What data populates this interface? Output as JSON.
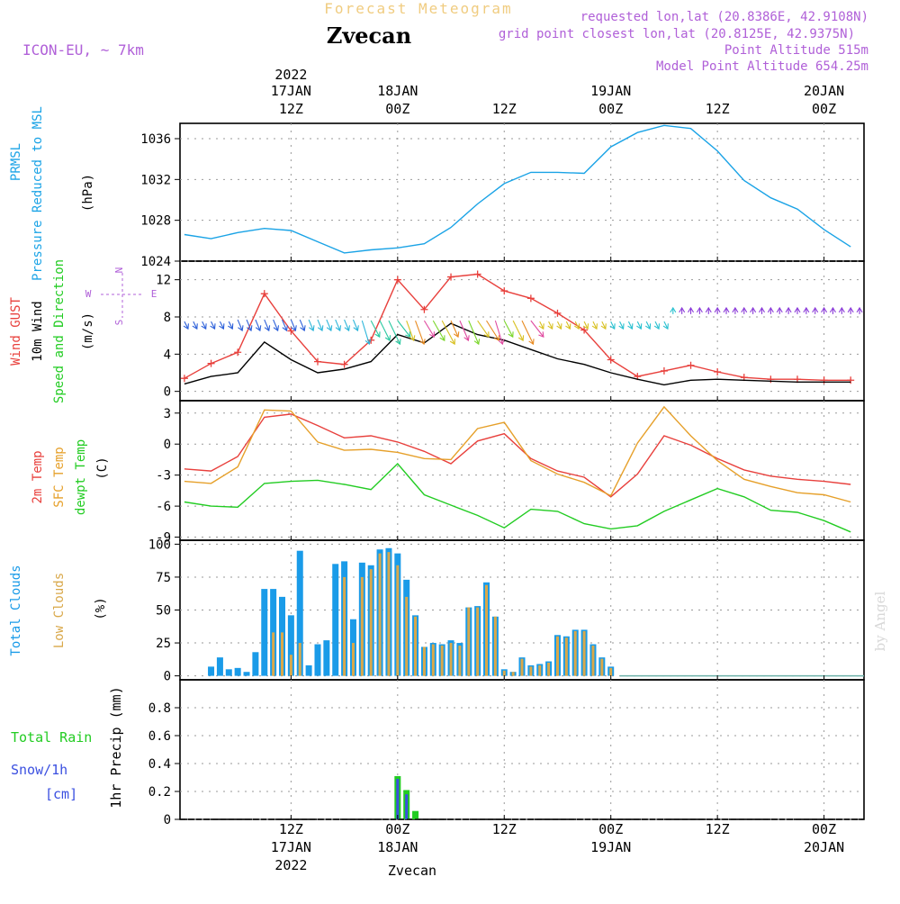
{
  "header": {
    "title_top": "Forecast Meteogram",
    "location": "Zvecan",
    "model": "ICON-EU, ~ 7km",
    "requested": "requested lon,lat (20.8386E, 42.9108N)",
    "grid_point": "grid point closest lon,lat (20.8125E, 42.9375N)",
    "point_alt": "Point Altitude 515m",
    "model_alt": "Model Point Altitude 654.25m",
    "footer_location": "Zvecan",
    "watermark": "by Angel"
  },
  "colors": {
    "prmsl": "#1aa3e6",
    "gust": "#e8403c",
    "wind": "#000000",
    "temp2m": "#e8403c",
    "sfc": "#e6a02a",
    "dew": "#22cc22",
    "total_clouds": "#1a9be8",
    "low_clouds": "#d9a84a",
    "rain": "#22cc22",
    "snow": "#3a4fe0",
    "purple": "#b060d8"
  },
  "chart_data": [
    {
      "id": "pressure",
      "type": "line",
      "title": "PRMSL Pressure Reduced to MSL",
      "label_lines": [
        "PRMSL",
        "Pressure Reduced to MSL"
      ],
      "unit": "(hPa)",
      "ylim": [
        1024,
        1037.5
      ],
      "yticks": [
        1024,
        1028,
        1032,
        1036
      ],
      "x": [
        0,
        3,
        6,
        9,
        12,
        15,
        18,
        21,
        24,
        27,
        30,
        33,
        36,
        39,
        42,
        45,
        48,
        51,
        54,
        57,
        60,
        63,
        66,
        69,
        72,
        75
      ],
      "series": [
        {
          "name": "PRMSL",
          "values": [
            1026.6,
            1026.2,
            1026.8,
            1027.2,
            1027.0,
            1025.9,
            1024.8,
            1025.1,
            1025.3,
            1025.7,
            1027.3,
            1029.6,
            1031.6,
            1032.7,
            1032.7,
            1032.6,
            1035.2,
            1036.6,
            1037.3,
            1037.0,
            1034.8,
            1031.9,
            1030.2,
            1029.1,
            1027.1,
            1025.4
          ]
        }
      ]
    },
    {
      "id": "wind",
      "type": "line",
      "title": "Wind GUST / 10m Wind Speed and Direction",
      "label_lines": [
        "Wind GUST",
        "10m Wind",
        "Speed and Direction"
      ],
      "unit": "(m/s)",
      "ylim": [
        -1,
        14
      ],
      "yticks": [
        0,
        4,
        8,
        12
      ],
      "compass": [
        "N",
        "W",
        "E",
        "S"
      ],
      "x": [
        0,
        3,
        6,
        9,
        12,
        15,
        18,
        21,
        24,
        27,
        30,
        33,
        36,
        39,
        42,
        45,
        48,
        51,
        54,
        57,
        60,
        63,
        66,
        69,
        72,
        75
      ],
      "series": [
        {
          "name": "Wind GUST",
          "values": [
            1.4,
            3.0,
            4.2,
            10.5,
            6.5,
            3.2,
            2.9,
            5.5,
            12.0,
            8.8,
            12.3,
            12.6,
            10.8,
            10.0,
            8.4,
            6.6,
            3.4,
            1.6,
            2.2,
            2.8,
            2.1,
            1.5,
            1.3,
            1.3,
            1.2,
            1.2
          ]
        },
        {
          "name": "10m Wind",
          "values": [
            0.8,
            1.6,
            2.0,
            5.3,
            3.4,
            2.0,
            2.4,
            3.2,
            6.1,
            5.2,
            7.3,
            6.1,
            5.5,
            4.5,
            3.5,
            2.9,
            2.0,
            1.3,
            0.7,
            1.2,
            1.3,
            1.2,
            1.1,
            1.0,
            1.0,
            1.0
          ]
        }
      ]
    },
    {
      "id": "temperature",
      "type": "line",
      "title": "2m Temp / SFC Temp / dewpt Temp",
      "label_lines": [
        "2m Temp",
        "SFC Temp",
        "dewpt Temp"
      ],
      "unit": "(C)",
      "ylim": [
        -9.3,
        4.2
      ],
      "yticks": [
        -9,
        -6,
        -3,
        0,
        3
      ],
      "x": [
        0,
        3,
        6,
        9,
        12,
        15,
        18,
        21,
        24,
        27,
        30,
        33,
        36,
        39,
        42,
        45,
        48,
        51,
        54,
        57,
        60,
        63,
        66,
        69,
        72,
        75
      ],
      "series": [
        {
          "name": "2m Temp",
          "values": [
            -2.4,
            -2.6,
            -1.2,
            2.6,
            2.9,
            1.8,
            0.6,
            0.8,
            0.2,
            -0.7,
            -1.9,
            0.3,
            1.0,
            -1.4,
            -2.6,
            -3.2,
            -5.1,
            -2.9,
            0.8,
            -0.1,
            -1.4,
            -2.5,
            -3.1,
            -3.4,
            -3.6,
            -3.9
          ]
        },
        {
          "name": "SFC Temp",
          "values": [
            -3.6,
            -3.8,
            -2.2,
            3.3,
            3.2,
            0.2,
            -0.6,
            -0.5,
            -0.8,
            -1.4,
            -1.5,
            1.5,
            2.1,
            -1.6,
            -2.9,
            -3.7,
            -5.0,
            0.1,
            3.6,
            0.8,
            -1.6,
            -3.4,
            -4.1,
            -4.7,
            -4.9,
            -5.6
          ]
        },
        {
          "name": "dewpt Temp",
          "values": [
            -5.6,
            -6.0,
            -6.1,
            -3.8,
            -3.6,
            -3.5,
            -3.9,
            -4.4,
            -1.9,
            -4.9,
            -5.9,
            -6.9,
            -8.1,
            -6.3,
            -6.5,
            -7.7,
            -8.2,
            -7.9,
            -6.5,
            -5.4,
            -4.3,
            -5.1,
            -6.4,
            -6.6,
            -7.4,
            -8.5
          ]
        }
      ]
    },
    {
      "id": "clouds",
      "type": "bar",
      "title": "Total Clouds / Low Clouds",
      "label_lines": [
        "Total Clouds",
        "Low Clouds"
      ],
      "unit": "(%)",
      "ylim": [
        -3,
        103
      ],
      "yticks": [
        0,
        25,
        50,
        75,
        100
      ],
      "x": [
        3,
        4,
        5,
        6,
        7,
        8,
        9,
        10,
        11,
        12,
        13,
        14,
        15,
        16,
        17,
        18,
        19,
        20,
        21,
        22,
        23,
        24,
        25,
        26,
        27,
        28,
        29,
        30,
        31,
        32,
        33,
        34,
        35,
        36,
        37,
        38,
        39,
        40,
        41,
        42,
        43,
        44,
        45,
        46,
        47,
        48
      ],
      "series": [
        {
          "name": "Total Clouds",
          "values": [
            7,
            14,
            5,
            6,
            3,
            18,
            66,
            66,
            60,
            46,
            95,
            8,
            24,
            27,
            85,
            87,
            43,
            86,
            84,
            96,
            97,
            93,
            73,
            46,
            22,
            25,
            24,
            27,
            25,
            52,
            53,
            71,
            45,
            5,
            3,
            14,
            8,
            9,
            11,
            31,
            30,
            35,
            35,
            24,
            14,
            7
          ]
        },
        {
          "name": "Low Clouds",
          "values": [
            0,
            0,
            0,
            0,
            0,
            0,
            0,
            33,
            33,
            16,
            25,
            0,
            0,
            0,
            0,
            75,
            25,
            75,
            81,
            93,
            94,
            84,
            60,
            45,
            22,
            24,
            23,
            25,
            23,
            52,
            52,
            69,
            45,
            4,
            3,
            13,
            7,
            8,
            10,
            30,
            29,
            34,
            34,
            23,
            13,
            6
          ]
        }
      ]
    },
    {
      "id": "precip",
      "type": "bar",
      "title": "1hr Precip (mm)",
      "label_lines": [
        "Total  Rain",
        "Snow/1h",
        "[cm]"
      ],
      "unit": "1hr Precip (mm)",
      "ylim": [
        0,
        1.0
      ],
      "yticks": [
        0,
        0.2,
        0.4,
        0.6,
        0.8
      ],
      "ytick_labels": [
        "0",
        "0.2",
        "0.4",
        "0.6",
        "0.8"
      ],
      "x": [
        24,
        25,
        26
      ],
      "series": [
        {
          "name": "Total Rain",
          "values": [
            0.31,
            0.21,
            0.06
          ]
        },
        {
          "name": "Snow/1h",
          "values": [
            0.29,
            0.18,
            0.0
          ]
        }
      ]
    }
  ],
  "time_axis": {
    "x_range": [
      -0.5,
      76.5
    ],
    "grid_x": [
      12,
      24,
      36,
      48,
      60,
      72
    ],
    "top_labels": [
      {
        "x": 12,
        "lines": [
          "2022",
          "17JAN",
          "12Z"
        ]
      },
      {
        "x": 24,
        "lines": [
          "18JAN",
          "00Z"
        ]
      },
      {
        "x": 36,
        "lines": [
          "12Z"
        ]
      },
      {
        "x": 48,
        "lines": [
          "19JAN",
          "00Z"
        ]
      },
      {
        "x": 60,
        "lines": [
          "12Z"
        ]
      },
      {
        "x": 72,
        "lines": [
          "20JAN",
          "00Z"
        ]
      }
    ],
    "bottom_labels": [
      {
        "x": 12,
        "lines": [
          "12Z",
          "17JAN",
          "2022"
        ]
      },
      {
        "x": 24,
        "lines": [
          "00Z",
          "18JAN"
        ]
      },
      {
        "x": 36,
        "lines": [
          "12Z"
        ]
      },
      {
        "x": 48,
        "lines": [
          "00Z",
          "19JAN"
        ]
      },
      {
        "x": 60,
        "lines": [
          "12Z"
        ]
      },
      {
        "x": 72,
        "lines": [
          "00Z",
          "20JAN"
        ]
      }
    ]
  }
}
